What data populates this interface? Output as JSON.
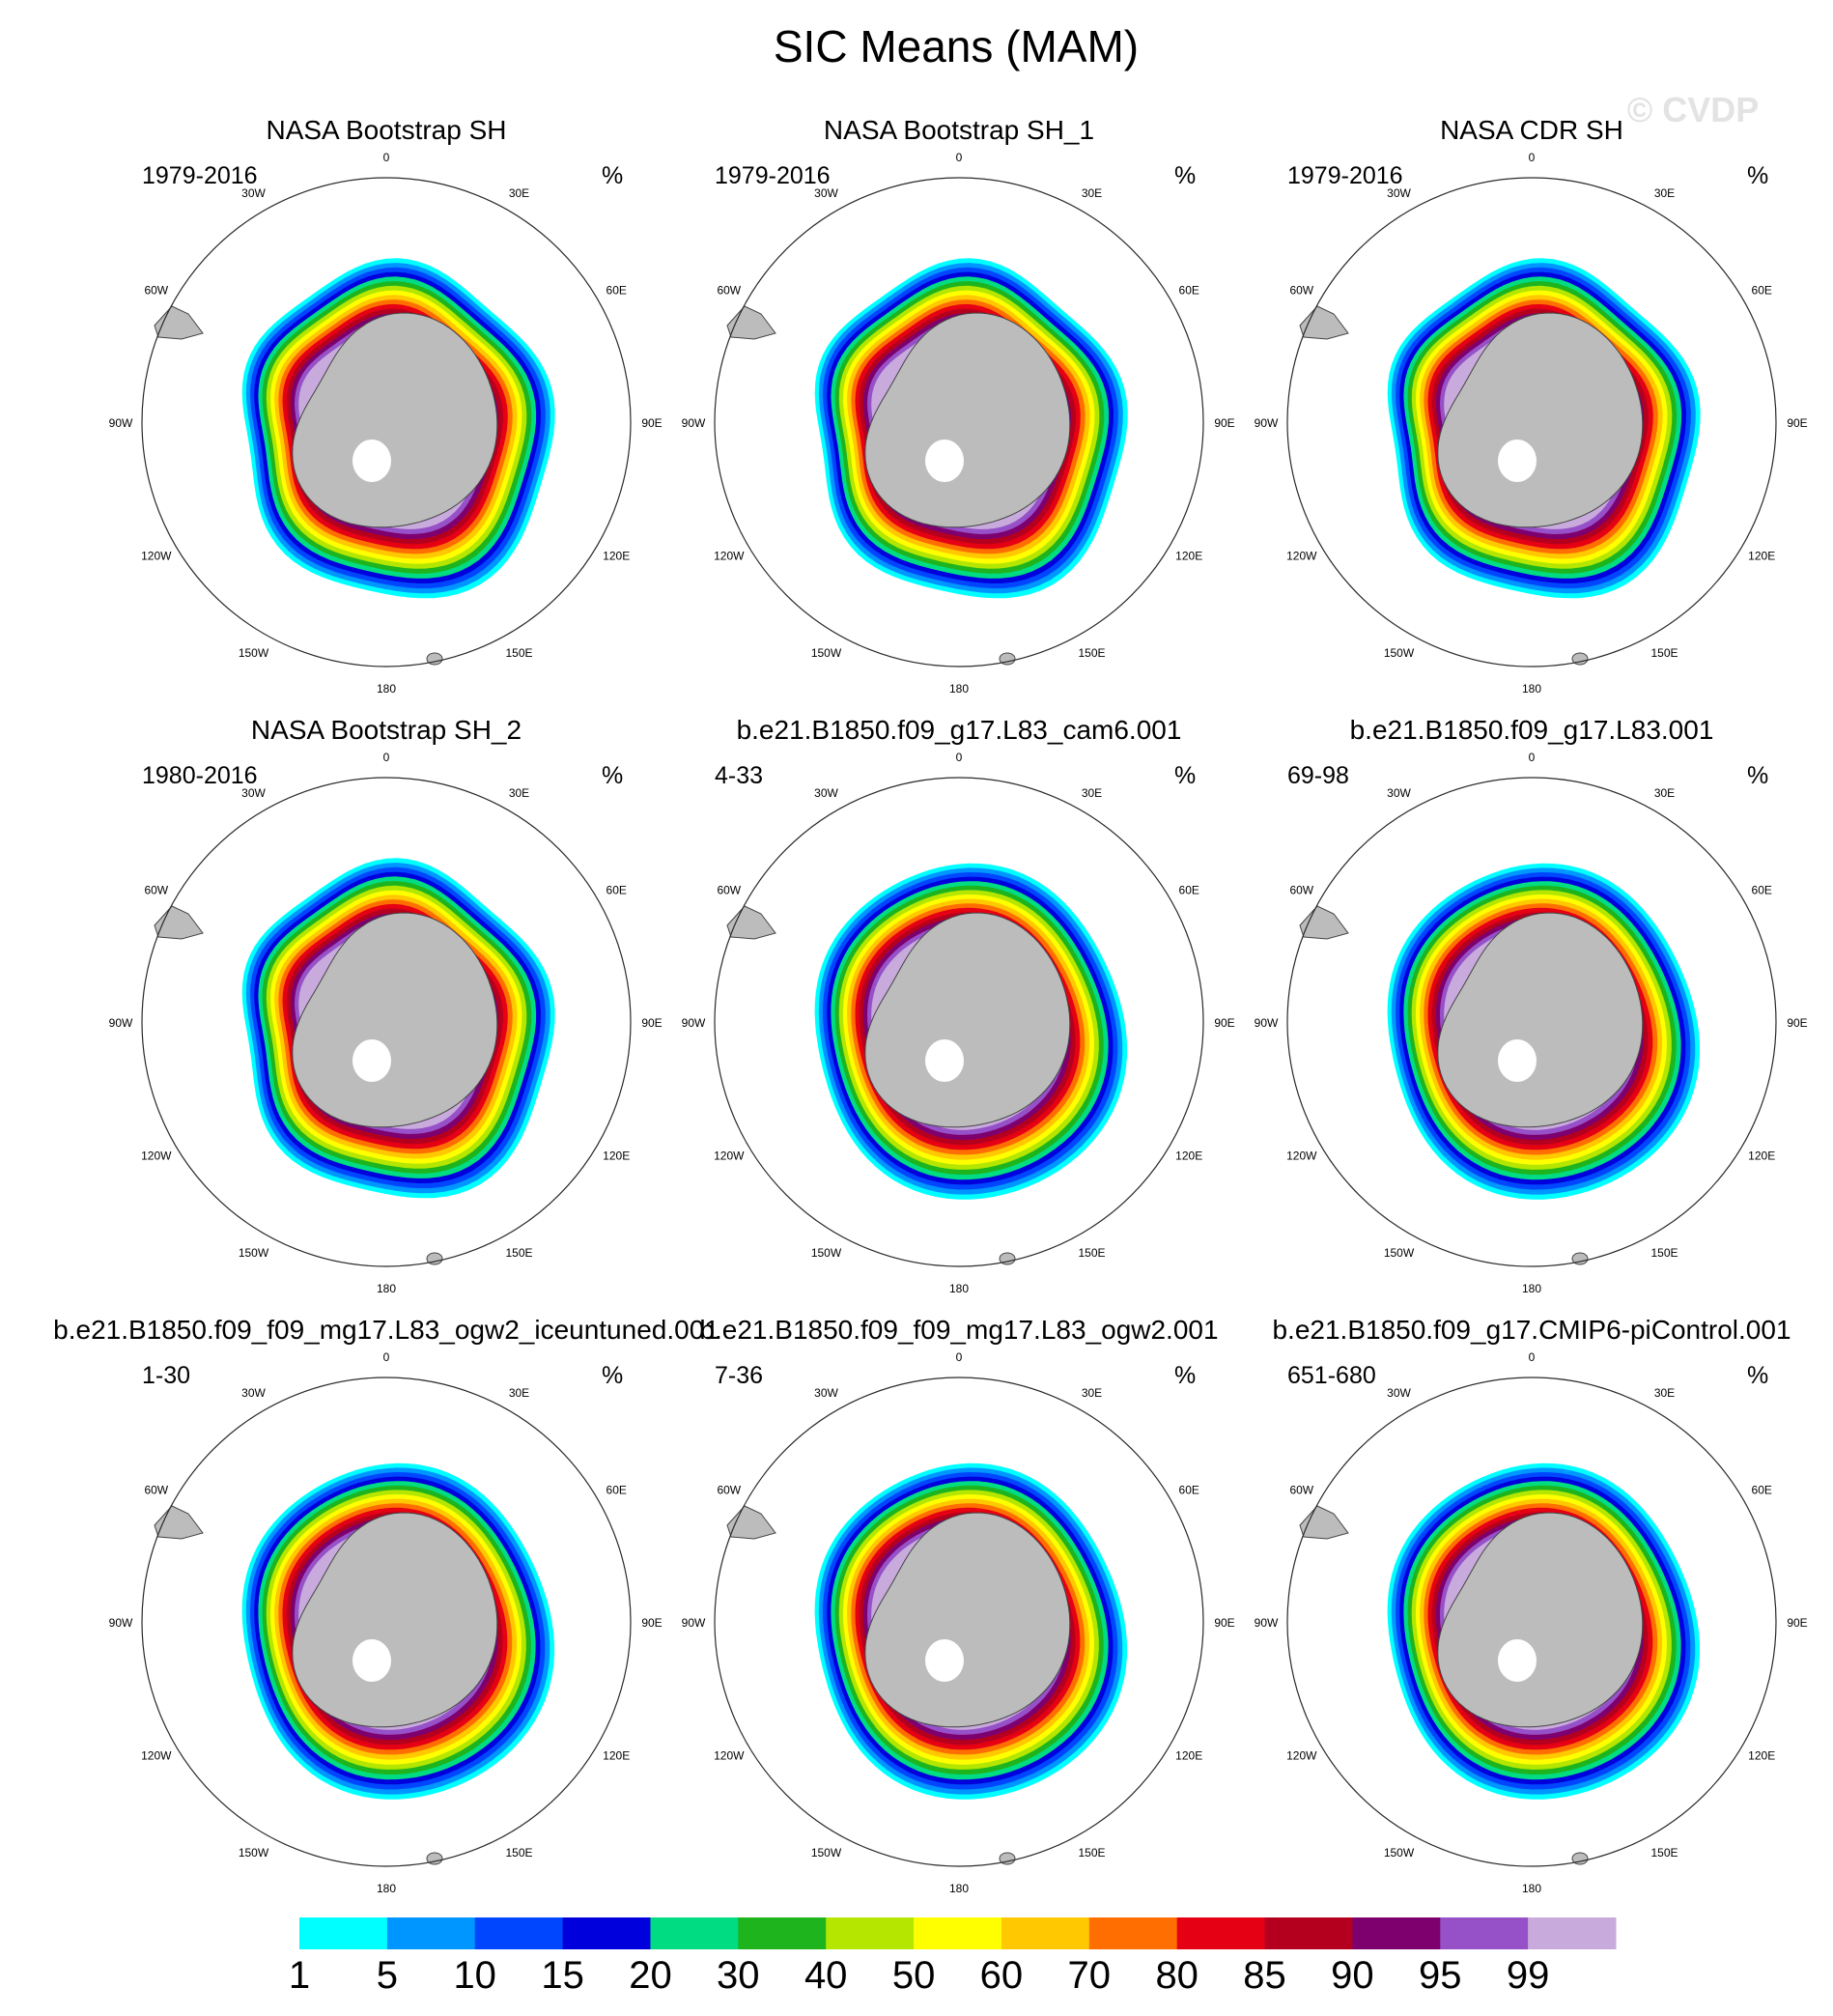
{
  "title": "SIC Means (MAM)",
  "watermark": "© CVDP",
  "units": "%",
  "longitude_labels": [
    "0",
    "30E",
    "60E",
    "90E",
    "120E",
    "150E",
    "180",
    "150W",
    "120W",
    "90W",
    "60W",
    "30W"
  ],
  "colors": {
    "land": "#bcbcbc",
    "ring": "#2a2a2a",
    "fill_scale": [
      "#00ffff",
      "#0096ff",
      "#0046ff",
      "#0000dc",
      "#00dc82",
      "#1eb41e",
      "#b4e600",
      "#ffff00",
      "#ffc800",
      "#ff6e00",
      "#e60014",
      "#b4001e",
      "#7d006e",
      "#9650c8",
      "#c8aadc"
    ]
  },
  "chart_data": {
    "type": "map",
    "panels": [
      {
        "title": "NASA Bootstrap SH",
        "period": "1979-2016",
        "units": "%",
        "style": "obs"
      },
      {
        "title": "NASA Bootstrap SH_1",
        "period": "1979-2016",
        "units": "%",
        "style": "obs"
      },
      {
        "title": "NASA CDR SH",
        "period": "1979-2016",
        "units": "%",
        "style": "obs"
      },
      {
        "title": "NASA Bootstrap SH_2",
        "period": "1980-2016",
        "units": "%",
        "style": "obs"
      },
      {
        "title": "b.e21.B1850.f09_g17.L83_cam6.001",
        "period": "4-33",
        "units": "%",
        "style": "model"
      },
      {
        "title": "b.e21.B1850.f09_g17.L83.001",
        "period": "69-98",
        "units": "%",
        "style": "model"
      },
      {
        "title": "b.e21.B1850.f09_f09_mg17.L83_ogw2_iceuntuned.001",
        "period": "1-30",
        "units": "%",
        "style": "model"
      },
      {
        "title": "b.e21.B1850.f09_f09_mg17.L83_ogw2.001",
        "period": "7-36",
        "units": "%",
        "style": "model"
      },
      {
        "title": "b.e21.B1850.f09_g17.CMIP6-piControl.001",
        "period": "651-680",
        "units": "%",
        "style": "model"
      }
    ],
    "colorbar": {
      "levels": [
        1,
        5,
        10,
        15,
        20,
        30,
        40,
        50,
        60,
        70,
        80,
        85,
        90,
        95,
        99
      ],
      "labels": [
        "1",
        "5",
        "10",
        "15",
        "20",
        "30",
        "40",
        "50",
        "60",
        "70",
        "80",
        "85",
        "90",
        "95",
        "99"
      ]
    }
  }
}
